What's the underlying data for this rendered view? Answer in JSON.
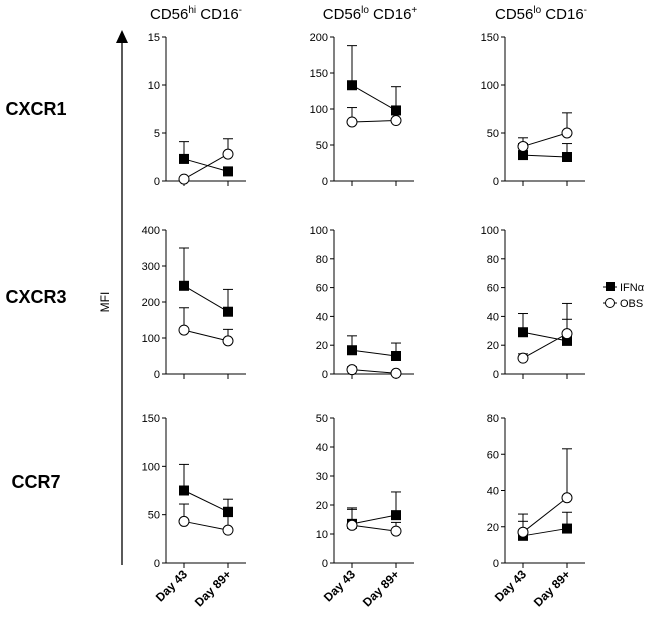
{
  "column_titles": [
    {
      "base": "CD56",
      "sup1": "hi",
      "mid": " CD16",
      "sup2": "-"
    },
    {
      "base": "CD56",
      "sup1": "lo",
      "mid": " CD16",
      "sup2": "+"
    },
    {
      "base": "CD56",
      "sup1": "lo",
      "mid": " CD16",
      "sup2": "-"
    }
  ],
  "row_labels": [
    "CXCR1",
    "CXCR3",
    "CCR7"
  ],
  "ylabel": "MFI",
  "legend": [
    {
      "label": "IFNα",
      "marker": "filled-square"
    },
    {
      "label": "OBS",
      "marker": "open-circle"
    }
  ],
  "x_labels": [
    "Day 43",
    "Day 89+"
  ],
  "chart_data": [
    {
      "type": "line",
      "row": "CXCR1",
      "column": "CD56hi CD16-",
      "categories": [
        "Day 43",
        "Day 89+"
      ],
      "ylim": [
        0,
        15
      ],
      "yticks": [
        0,
        5,
        10,
        15
      ],
      "series": [
        {
          "name": "IFNα",
          "values": [
            2.3,
            1.0
          ],
          "err": [
            1.8,
            0.0
          ]
        },
        {
          "name": "OBS",
          "values": [
            0.2,
            2.8
          ],
          "err": [
            0.0,
            1.6
          ]
        }
      ]
    },
    {
      "type": "line",
      "row": "CXCR1",
      "column": "CD56lo CD16+",
      "categories": [
        "Day 43",
        "Day 89+"
      ],
      "ylim": [
        0,
        200
      ],
      "yticks": [
        0,
        50,
        100,
        150,
        200
      ],
      "series": [
        {
          "name": "IFNα",
          "values": [
            133,
            98
          ],
          "err": [
            55,
            33
          ]
        },
        {
          "name": "OBS",
          "values": [
            82,
            84
          ],
          "err": [
            20,
            17
          ]
        }
      ]
    },
    {
      "type": "line",
      "row": "CXCR1",
      "column": "CD56lo CD16-",
      "categories": [
        "Day 43",
        "Day 89+"
      ],
      "ylim": [
        0,
        150
      ],
      "yticks": [
        0,
        50,
        100,
        150
      ],
      "series": [
        {
          "name": "IFNα",
          "values": [
            27,
            25
          ],
          "err": [
            12,
            14
          ]
        },
        {
          "name": "OBS",
          "values": [
            36,
            50
          ],
          "err": [
            9,
            21
          ]
        }
      ]
    },
    {
      "type": "line",
      "row": "CXCR3",
      "column": "CD56hi CD16-",
      "categories": [
        "Day 43",
        "Day 89+"
      ],
      "ylim": [
        0,
        400
      ],
      "yticks": [
        0,
        100,
        200,
        300,
        400
      ],
      "series": [
        {
          "name": "IFNα",
          "values": [
            245,
            173
          ],
          "err": [
            105,
            62
          ]
        },
        {
          "name": "OBS",
          "values": [
            122,
            92
          ],
          "err": [
            62,
            32
          ]
        }
      ]
    },
    {
      "type": "line",
      "row": "CXCR3",
      "column": "CD56lo CD16+",
      "categories": [
        "Day 43",
        "Day 89+"
      ],
      "ylim": [
        0,
        100
      ],
      "yticks": [
        0,
        20,
        40,
        60,
        80,
        100
      ],
      "series": [
        {
          "name": "IFNα",
          "values": [
            16.5,
            12.5
          ],
          "err": [
            10,
            9
          ]
        },
        {
          "name": "OBS",
          "values": [
            3,
            0.5
          ],
          "err": [
            2,
            0
          ]
        }
      ]
    },
    {
      "type": "line",
      "row": "CXCR3",
      "column": "CD56lo CD16-",
      "categories": [
        "Day 43",
        "Day 89+"
      ],
      "ylim": [
        0,
        100
      ],
      "yticks": [
        0,
        20,
        40,
        60,
        80,
        100
      ],
      "series": [
        {
          "name": "IFNα",
          "values": [
            29,
            23
          ],
          "err": [
            13,
            15
          ]
        },
        {
          "name": "OBS",
          "values": [
            11,
            28
          ],
          "err": [
            3,
            21
          ]
        }
      ]
    },
    {
      "type": "line",
      "row": "CCR7",
      "column": "CD56hi CD16-",
      "categories": [
        "Day 43",
        "Day 89+"
      ],
      "ylim": [
        0,
        150
      ],
      "yticks": [
        0,
        50,
        100,
        150
      ],
      "series": [
        {
          "name": "IFNα",
          "values": [
            75,
            53
          ],
          "err": [
            27,
            13
          ]
        },
        {
          "name": "OBS",
          "values": [
            43,
            34
          ],
          "err": [
            18,
            14
          ]
        }
      ]
    },
    {
      "type": "line",
      "row": "CCR7",
      "column": "CD56lo CD16+",
      "categories": [
        "Day 43",
        "Day 89+"
      ],
      "ylim": [
        0,
        50
      ],
      "yticks": [
        0,
        10,
        20,
        30,
        40,
        50
      ],
      "series": [
        {
          "name": "IFNα",
          "values": [
            13.5,
            16.5
          ],
          "err": [
            5,
            8
          ]
        },
        {
          "name": "OBS",
          "values": [
            13,
            11
          ],
          "err": [
            6,
            3
          ]
        }
      ]
    },
    {
      "type": "line",
      "row": "CCR7",
      "column": "CD56lo CD16-",
      "categories": [
        "Day 43",
        "Day 89+"
      ],
      "ylim": [
        0,
        80
      ],
      "yticks": [
        0,
        20,
        40,
        60,
        80
      ],
      "series": [
        {
          "name": "IFNα",
          "values": [
            15,
            19
          ],
          "err": [
            8,
            9
          ]
        },
        {
          "name": "OBS",
          "values": [
            17,
            36
          ],
          "err": [
            10,
            27
          ]
        }
      ]
    }
  ]
}
